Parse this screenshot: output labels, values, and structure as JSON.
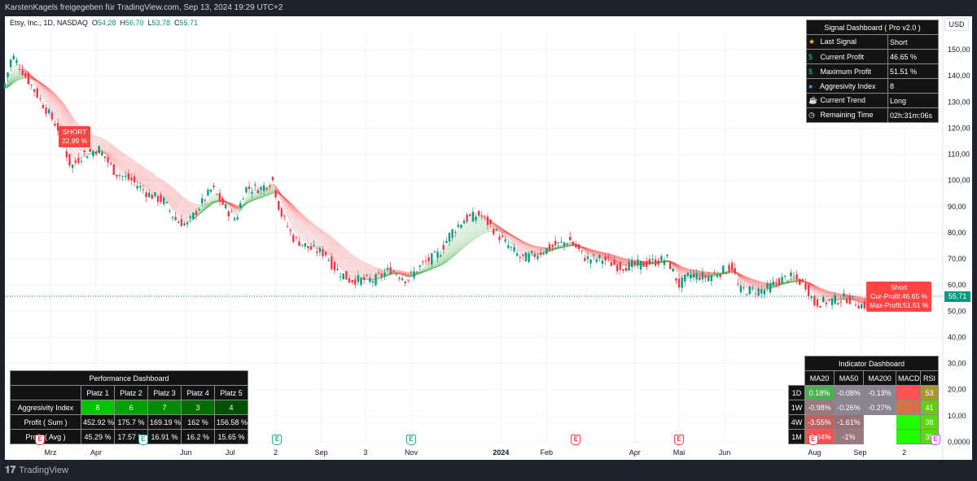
{
  "header": {
    "share_text": "KarstenKagels freigegeben für TradingView.com, Sep 13, 2024 19:29 UTC+2"
  },
  "legend": {
    "symbol": "Etsy, Inc., 1D, NASDAQ",
    "o_label": "O",
    "o": "54,28",
    "h_label": "H",
    "h": "56,70",
    "l_label": "L",
    "l": "53,78",
    "c_label": "C",
    "c": "55,71"
  },
  "currency": "USD",
  "last_price": "55,71",
  "footer": {
    "brand": "TradingView"
  },
  "signal_labels": {
    "short_left": {
      "title": "SHORT",
      "value": "22.99 %"
    },
    "short_right": {
      "title": "Short",
      "cur": "Cur-Profit:46.65 %",
      "max": "Max-Profit:51.51 %"
    }
  },
  "signal_dashboard": {
    "title": "Signal Dashboard ( Pro v2.0 )",
    "rows": [
      {
        "icon": "star-icon",
        "glyph": "★",
        "color": "#f5c518",
        "label": "Last Signal",
        "value": "Short"
      },
      {
        "icon": "dollar-icon",
        "glyph": "$",
        "color": "#22c55e",
        "label": "Current Profit",
        "value": "46.65 %"
      },
      {
        "icon": "dollar-icon",
        "glyph": "$",
        "color": "#22c55e",
        "label": "Maximum Profit",
        "value": "51.51 %"
      },
      {
        "icon": "blue-circle-icon",
        "glyph": "●",
        "color": "#3b9cff",
        "label": "Aggresivity Index",
        "value": "8"
      },
      {
        "icon": "cup-icon",
        "glyph": "☕",
        "color": "#e5e5e5",
        "label": "Current Trend",
        "value": "Long"
      },
      {
        "icon": "clock-icon",
        "glyph": "◷",
        "color": "#ffffff",
        "label": "Remaining Time",
        "value": "02h:31m:06s"
      }
    ]
  },
  "performance_dashboard": {
    "title": "Performance Dashboard",
    "columns": [
      "Platz 1",
      "Platz 2",
      "Platz 3",
      "Platz 4",
      "Platz 5"
    ],
    "rows": [
      {
        "label": "Aggresivity Index",
        "values": [
          "8",
          "6",
          "7",
          "3",
          "4"
        ],
        "colors": [
          "#00c400",
          "#00a000",
          "#008c00",
          "#006e00",
          "#005200"
        ]
      },
      {
        "label": "Profit ( Sum )",
        "values": [
          "452.92 %",
          "175.7 %",
          "169.19 %",
          "162 %",
          "156.58 %"
        ]
      },
      {
        "label": "Profit ( Avg )",
        "values": [
          "45.29 %",
          "17.57 %",
          "16.91 %",
          "16.2 %",
          "15.65 %"
        ]
      }
    ]
  },
  "indicator_dashboard": {
    "title": "Indicator Dashboard",
    "columns": [
      "MA20",
      "MA50",
      "MA200",
      "MACD",
      "RSI"
    ],
    "rows": [
      {
        "label": "1D",
        "cells": [
          {
            "v": "0.18%",
            "c": "#4caf50"
          },
          {
            "v": "-0.08%",
            "c": "#8a8590"
          },
          {
            "v": "-0.13%",
            "c": "#8a8590"
          },
          {
            "v": "",
            "c": "#ff5252"
          },
          {
            "v": "53",
            "c": "#a89a2a"
          }
        ]
      },
      {
        "label": "1W",
        "cells": [
          {
            "v": "-0.98%",
            "c": "#9a7880"
          },
          {
            "v": "-0.26%",
            "c": "#8a8590"
          },
          {
            "v": "-0.27%",
            "c": "#8a8590"
          },
          {
            "v": "",
            "c": "#d9704a"
          },
          {
            "v": "41",
            "c": "#66cc11"
          }
        ]
      },
      {
        "label": "4W",
        "cells": [
          {
            "v": "-3.55%",
            "c": "#c06060"
          },
          {
            "v": "-1.61%",
            "c": "#9a7078"
          },
          {
            "v": "",
            "c": "#ffffff"
          },
          {
            "v": "",
            "c": "#22ff00"
          },
          {
            "v": "38",
            "c": "#55dd11"
          }
        ]
      },
      {
        "label": "1M",
        "cells": [
          {
            "v": "-5.34%",
            "c": "#ff5050"
          },
          {
            "v": "-1%",
            "c": "#9a7880"
          },
          {
            "v": "",
            "c": "#ffffff"
          },
          {
            "v": "",
            "c": "#22ff00"
          },
          {
            "v": "39",
            "c": "#55dd11"
          }
        ]
      }
    ]
  },
  "earnings_markers": [
    {
      "date": "2023-02-22",
      "color": "#f23645",
      "label": "E"
    },
    {
      "date": "2023-05-03",
      "color": "#26a69a",
      "label": "E"
    },
    {
      "date": "2023-08-02",
      "color": "#26a69a",
      "label": "E"
    },
    {
      "date": "2023-11-01",
      "color": "#26a69a",
      "label": "E"
    },
    {
      "date": "2024-02-21",
      "color": "#f23645",
      "label": "E"
    },
    {
      "date": "2024-05-01",
      "color": "#f23645",
      "label": "E"
    },
    {
      "date": "2024-07-31",
      "color": "#f23645",
      "label": "E"
    },
    {
      "date": "2024-10-30",
      "color": "#e040fb",
      "label": "E"
    }
  ],
  "chart_data": {
    "type": "candlestick",
    "title": "Etsy, Inc., 1D, NASDAQ",
    "x_ticks": [
      {
        "date": "2023-03-01",
        "label": "Mrz"
      },
      {
        "date": "2023-04-01",
        "label": "Apr"
      },
      {
        "date": "2023-06-01",
        "label": "Jun"
      },
      {
        "date": "2023-07-01",
        "label": "Jul"
      },
      {
        "date": "2023-08-01",
        "label": "2"
      },
      {
        "date": "2023-09-01",
        "label": "Sep"
      },
      {
        "date": "2023-10-01",
        "label": "3"
      },
      {
        "date": "2023-11-01",
        "label": "Nov"
      },
      {
        "date": "2024-01-01",
        "label": "2024"
      },
      {
        "date": "2024-02-01",
        "label": "Feb"
      },
      {
        "date": "2024-04-01",
        "label": "Apr"
      },
      {
        "date": "2024-05-01",
        "label": "Mai"
      },
      {
        "date": "2024-06-01",
        "label": "Jun"
      },
      {
        "date": "2024-08-01",
        "label": "Aug"
      },
      {
        "date": "2024-09-01",
        "label": "Sep"
      },
      {
        "date": "2024-10-01",
        "label": "2"
      }
    ],
    "y_ticks": [
      "150,00",
      "140,00",
      "130,00",
      "120,00",
      "110,00",
      "100,00",
      "90,00",
      "80,00",
      "70,00",
      "60,00",
      "50,00",
      "40,00",
      "30,00",
      "20,00",
      "10,00",
      "0,0000"
    ],
    "ylim": [
      0,
      150
    ],
    "colors": {
      "up": "#089981",
      "down": "#f23645",
      "ribbon_bear": "#f44",
      "ribbon_bull": "#4caf50"
    },
    "close": [
      [
        "2023-01-28",
        135
      ],
      [
        "2023-02-03",
        148
      ],
      [
        "2023-02-12",
        140
      ],
      [
        "2023-02-23",
        130
      ],
      [
        "2023-03-06",
        120
      ],
      [
        "2023-03-15",
        105
      ],
      [
        "2023-03-23",
        110
      ],
      [
        "2023-04-03",
        112
      ],
      [
        "2023-04-14",
        103
      ],
      [
        "2023-04-25",
        100
      ],
      [
        "2023-05-06",
        95
      ],
      [
        "2023-05-17",
        92
      ],
      [
        "2023-05-25",
        85
      ],
      [
        "2023-06-02",
        83
      ],
      [
        "2023-06-10",
        90
      ],
      [
        "2023-06-19",
        97
      ],
      [
        "2023-06-27",
        90
      ],
      [
        "2023-07-05",
        85
      ],
      [
        "2023-07-11",
        97
      ],
      [
        "2023-07-22",
        97
      ],
      [
        "2023-07-30",
        100
      ],
      [
        "2023-08-04",
        88
      ],
      [
        "2023-08-13",
        78
      ],
      [
        "2023-08-24",
        74
      ],
      [
        "2023-09-04",
        72
      ],
      [
        "2023-09-09",
        67
      ],
      [
        "2023-09-20",
        62
      ],
      [
        "2023-10-07",
        62
      ],
      [
        "2023-10-18",
        66
      ],
      [
        "2023-10-29",
        62
      ],
      [
        "2023-11-09",
        68
      ],
      [
        "2023-11-20",
        72
      ],
      [
        "2023-11-28",
        80
      ],
      [
        "2023-12-07",
        85
      ],
      [
        "2023-12-18",
        87
      ],
      [
        "2023-12-26",
        82
      ],
      [
        "2024-01-04",
        76
      ],
      [
        "2024-01-15",
        70
      ],
      [
        "2024-01-26",
        72
      ],
      [
        "2024-02-06",
        75
      ],
      [
        "2024-02-17",
        77
      ],
      [
        "2024-02-28",
        70
      ],
      [
        "2024-03-10",
        70
      ],
      [
        "2024-03-21",
        67
      ],
      [
        "2024-04-07",
        68
      ],
      [
        "2024-04-23",
        70
      ],
      [
        "2024-05-01",
        60
      ],
      [
        "2024-05-09",
        64
      ],
      [
        "2024-05-20",
        63
      ],
      [
        "2024-05-29",
        65
      ],
      [
        "2024-06-06",
        67
      ],
      [
        "2024-06-11",
        58
      ],
      [
        "2024-06-28",
        58
      ],
      [
        "2024-07-09",
        62
      ],
      [
        "2024-07-17",
        63
      ],
      [
        "2024-07-26",
        60
      ],
      [
        "2024-08-01",
        53
      ],
      [
        "2024-08-12",
        54
      ],
      [
        "2024-08-23",
        55
      ],
      [
        "2024-09-03",
        52
      ],
      [
        "2024-09-13",
        55.71
      ]
    ]
  }
}
